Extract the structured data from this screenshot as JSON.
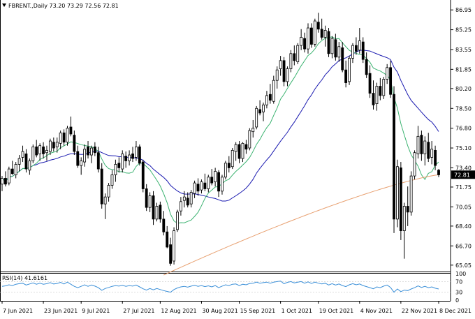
{
  "chart_data": {
    "type": "candlestick",
    "symbol": "FBRENT",
    "timeframe": "Daily",
    "ohlc_header": {
      "open": "73.20",
      "high": "73.29",
      "low": "72.56",
      "close": "72.81"
    },
    "header_text": "FBRENT.,Daily  73.20 73.29 72.56 72.81",
    "last_price_label": "72.81",
    "colors": {
      "up": "#ffffff",
      "down": "#000000",
      "ma_fast": "#3cb371",
      "ma_mid": "#1a1ab0",
      "ma_slow": "#e8a070",
      "rsi": "#3a8fd8",
      "last_price_bg": "#000000"
    },
    "y_axis": {
      "range": [
        64.5,
        87.8
      ],
      "ticks": [
        "86.95",
        "85.25",
        "83.55",
        "81.85",
        "80.20",
        "78.50",
        "76.80",
        "75.10",
        "73.40",
        "71.75",
        "70.05",
        "68.40",
        "66.70",
        "65.05"
      ]
    },
    "x_axis": {
      "dates": [
        "7 Jun 2021",
        "23 Jun 2021",
        "9 Jul 2021",
        "27 Jul 2021",
        "12 Aug 2021",
        "30 Aug 2021",
        "15 Sep 2021",
        "1 Oct 2021",
        "19 Oct 2021",
        "4 Nov 2021",
        "22 Nov 2021",
        "8 Dec 2021"
      ]
    },
    "candles": [
      [
        72.0,
        72.7,
        71.4,
        72.5
      ],
      [
        72.5,
        73.1,
        71.8,
        72.0
      ],
      [
        72.1,
        73.5,
        71.9,
        73.3
      ],
      [
        73.3,
        74.0,
        72.8,
        72.9
      ],
      [
        72.8,
        73.9,
        72.5,
        73.7
      ],
      [
        73.7,
        74.5,
        73.1,
        74.2
      ],
      [
        74.3,
        75.3,
        73.9,
        74.8
      ],
      [
        74.6,
        75.0,
        73.0,
        73.3
      ],
      [
        73.2,
        74.2,
        72.8,
        74.0
      ],
      [
        74.0,
        75.4,
        73.8,
        75.2
      ],
      [
        75.2,
        75.8,
        74.3,
        74.5
      ],
      [
        74.6,
        75.5,
        74.0,
        75.3
      ],
      [
        75.2,
        75.6,
        74.2,
        74.6
      ],
      [
        74.7,
        75.3,
        74.0,
        74.9
      ],
      [
        74.8,
        75.9,
        74.5,
        75.7
      ],
      [
        75.6,
        76.0,
        74.8,
        75.1
      ],
      [
        75.2,
        76.0,
        74.7,
        75.6
      ],
      [
        75.5,
        76.6,
        75.0,
        76.4
      ],
      [
        76.4,
        76.7,
        75.3,
        75.6
      ],
      [
        75.6,
        77.0,
        75.3,
        76.8
      ],
      [
        76.9,
        77.8,
        76.1,
        76.3
      ],
      [
        76.2,
        76.6,
        74.5,
        74.8
      ],
      [
        74.8,
        75.3,
        73.4,
        73.6
      ],
      [
        73.6,
        74.3,
        72.8,
        74.0
      ],
      [
        73.9,
        75.4,
        73.5,
        75.0
      ],
      [
        75.2,
        75.7,
        74.2,
        74.5
      ],
      [
        74.5,
        75.3,
        73.8,
        75.1
      ],
      [
        75.2,
        75.6,
        74.4,
        74.7
      ],
      [
        74.7,
        75.2,
        73.0,
        73.3
      ],
      [
        73.3,
        73.8,
        69.9,
        70.3
      ],
      [
        70.3,
        71.2,
        69.0,
        70.9
      ],
      [
        70.9,
        72.1,
        70.5,
        71.9
      ],
      [
        71.9,
        73.2,
        71.6,
        72.8
      ],
      [
        72.8,
        74.1,
        72.2,
        73.7
      ],
      [
        73.8,
        74.3,
        73.0,
        73.4
      ],
      [
        73.3,
        74.9,
        73.0,
        74.6
      ],
      [
        74.4,
        74.8,
        73.4,
        74.0
      ],
      [
        74.0,
        74.9,
        73.6,
        74.5
      ],
      [
        74.6,
        75.2,
        73.9,
        74.2
      ],
      [
        74.3,
        75.7,
        74.0,
        75.2
      ],
      [
        75.2,
        75.4,
        73.6,
        73.8
      ],
      [
        73.9,
        74.1,
        71.3,
        71.6
      ],
      [
        71.6,
        72.0,
        69.7,
        70.0
      ],
      [
        70.0,
        71.3,
        69.6,
        71.0
      ],
      [
        71.0,
        71.4,
        68.5,
        69.0
      ],
      [
        69.0,
        70.4,
        68.8,
        70.1
      ],
      [
        70.2,
        70.5,
        68.7,
        69.0
      ],
      [
        69.0,
        69.7,
        67.6,
        67.9
      ],
      [
        67.9,
        68.4,
        66.5,
        66.6
      ],
      [
        66.8,
        67.4,
        65.0,
        65.2
      ],
      [
        65.4,
        68.3,
        65.1,
        68.0
      ],
      [
        68.1,
        69.8,
        67.9,
        69.6
      ],
      [
        69.7,
        70.9,
        69.3,
        70.5
      ],
      [
        70.6,
        71.4,
        70.0,
        70.9
      ],
      [
        70.8,
        71.3,
        70.0,
        70.2
      ],
      [
        70.3,
        71.5,
        70.0,
        71.3
      ],
      [
        71.2,
        72.3,
        70.8,
        72.1
      ],
      [
        72.0,
        72.5,
        71.0,
        71.4
      ],
      [
        71.5,
        72.4,
        71.2,
        72.2
      ],
      [
        72.1,
        72.9,
        71.4,
        71.6
      ],
      [
        71.6,
        72.8,
        71.3,
        72.6
      ],
      [
        72.6,
        73.3,
        71.9,
        72.1
      ],
      [
        72.2,
        73.4,
        71.8,
        73.1
      ],
      [
        73.0,
        73.2,
        70.9,
        71.4
      ],
      [
        71.4,
        72.8,
        71.1,
        72.6
      ],
      [
        72.6,
        74.0,
        72.4,
        73.8
      ],
      [
        73.8,
        74.4,
        73.0,
        73.4
      ],
      [
        73.5,
        75.1,
        73.3,
        74.9
      ],
      [
        74.8,
        75.6,
        74.0,
        75.4
      ],
      [
        75.4,
        75.7,
        73.8,
        74.2
      ],
      [
        74.2,
        75.6,
        73.9,
        75.5
      ],
      [
        75.4,
        75.8,
        74.6,
        75.0
      ],
      [
        75.1,
        76.8,
        74.9,
        76.6
      ],
      [
        76.5,
        77.5,
        76.0,
        76.8
      ],
      [
        76.9,
        78.7,
        76.7,
        78.5
      ],
      [
        78.4,
        79.2,
        77.9,
        78.1
      ],
      [
        78.2,
        79.0,
        77.4,
        78.8
      ],
      [
        78.8,
        80.0,
        78.5,
        79.6
      ],
      [
        79.7,
        80.6,
        78.9,
        79.2
      ],
      [
        79.1,
        81.3,
        78.9,
        80.9
      ],
      [
        80.9,
        82.1,
        80.2,
        81.8
      ],
      [
        81.9,
        83.0,
        81.3,
        82.6
      ],
      [
        82.6,
        82.9,
        80.4,
        80.8
      ],
      [
        80.8,
        82.1,
        80.4,
        81.9
      ],
      [
        81.9,
        83.5,
        81.6,
        83.2
      ],
      [
        83.2,
        83.9,
        82.2,
        82.6
      ],
      [
        82.5,
        84.1,
        82.3,
        83.9
      ],
      [
        83.9,
        85.3,
        83.5,
        84.6
      ],
      [
        84.5,
        85.0,
        83.3,
        83.6
      ],
      [
        83.6,
        85.8,
        83.2,
        85.4
      ],
      [
        85.4,
        85.8,
        83.7,
        84.0
      ],
      [
        84.0,
        86.2,
        83.8,
        86.0
      ],
      [
        85.9,
        86.7,
        85.0,
        85.3
      ],
      [
        85.3,
        86.2,
        84.4,
        84.6
      ],
      [
        84.6,
        85.6,
        83.8,
        85.2
      ],
      [
        85.1,
        85.4,
        82.9,
        83.2
      ],
      [
        83.2,
        84.7,
        82.8,
        84.5
      ],
      [
        84.4,
        84.9,
        82.6,
        82.9
      ],
      [
        82.9,
        84.2,
        82.5,
        83.8
      ],
      [
        83.7,
        84.2,
        81.6,
        81.8
      ],
      [
        81.8,
        82.6,
        80.3,
        80.7
      ],
      [
        80.8,
        83.0,
        80.5,
        82.8
      ],
      [
        82.8,
        84.1,
        82.4,
        83.9
      ],
      [
        83.9,
        84.6,
        83.1,
        83.4
      ],
      [
        83.5,
        85.4,
        83.2,
        84.3
      ],
      [
        84.2,
        84.6,
        82.4,
        82.7
      ],
      [
        82.7,
        83.3,
        81.1,
        81.4
      ],
      [
        81.5,
        82.2,
        79.4,
        79.8
      ],
      [
        79.8,
        80.9,
        78.4,
        78.8
      ],
      [
        78.9,
        80.7,
        78.3,
        80.4
      ],
      [
        80.4,
        81.1,
        79.2,
        79.6
      ],
      [
        79.6,
        81.2,
        79.3,
        81.0
      ],
      [
        81.0,
        82.3,
        80.6,
        82.0
      ],
      [
        82.0,
        82.6,
        79.4,
        79.7
      ],
      [
        79.7,
        80.4,
        67.8,
        69.0
      ],
      [
        69.0,
        74.1,
        68.3,
        73.5
      ],
      [
        73.4,
        73.9,
        67.2,
        68.0
      ],
      [
        68.0,
        70.4,
        65.6,
        70.1
      ],
      [
        70.1,
        71.8,
        68.4,
        69.6
      ],
      [
        69.6,
        73.1,
        69.3,
        72.7
      ],
      [
        72.7,
        74.9,
        72.4,
        74.7
      ],
      [
        74.6,
        77.0,
        74.2,
        76.1
      ],
      [
        76.2,
        76.6,
        74.0,
        74.6
      ],
      [
        74.6,
        76.1,
        73.6,
        75.7
      ],
      [
        75.6,
        76.4,
        73.9,
        74.2
      ],
      [
        74.3,
        75.7,
        73.7,
        75.0
      ],
      [
        74.9,
        75.3,
        73.2,
        73.6
      ],
      [
        73.2,
        73.3,
        72.6,
        72.8
      ]
    ],
    "rsi": {
      "label": "RSI(14) 41.6161",
      "levels": [
        "100",
        "70",
        "30",
        "0"
      ],
      "ticks": [
        100,
        70,
        30,
        0
      ],
      "values": [
        52,
        54,
        58,
        55,
        60,
        62,
        64,
        57,
        61,
        65,
        60,
        64,
        60,
        62,
        66,
        61,
        63,
        67,
        61,
        68,
        60,
        52,
        47,
        52,
        58,
        52,
        57,
        53,
        47,
        37,
        44,
        48,
        52,
        55,
        53,
        56,
        52,
        55,
        53,
        57,
        50,
        43,
        38,
        44,
        39,
        44,
        40,
        36,
        33,
        30,
        40,
        46,
        50,
        52,
        49,
        53,
        56,
        52,
        55,
        51,
        54,
        50,
        55,
        47,
        53,
        58,
        55,
        60,
        61,
        55,
        60,
        58,
        63,
        64,
        68,
        64,
        66,
        68,
        64,
        68,
        70,
        72,
        62,
        67,
        70,
        65,
        68,
        70,
        64,
        69,
        63,
        68,
        64,
        61,
        64,
        57,
        62,
        57,
        61,
        55,
        51,
        58,
        62,
        58,
        61,
        55,
        51,
        47,
        43,
        50,
        47,
        53,
        57,
        48,
        30,
        42,
        32,
        38,
        36,
        42,
        47,
        54,
        48,
        52,
        47,
        50,
        45,
        42
      ]
    }
  }
}
